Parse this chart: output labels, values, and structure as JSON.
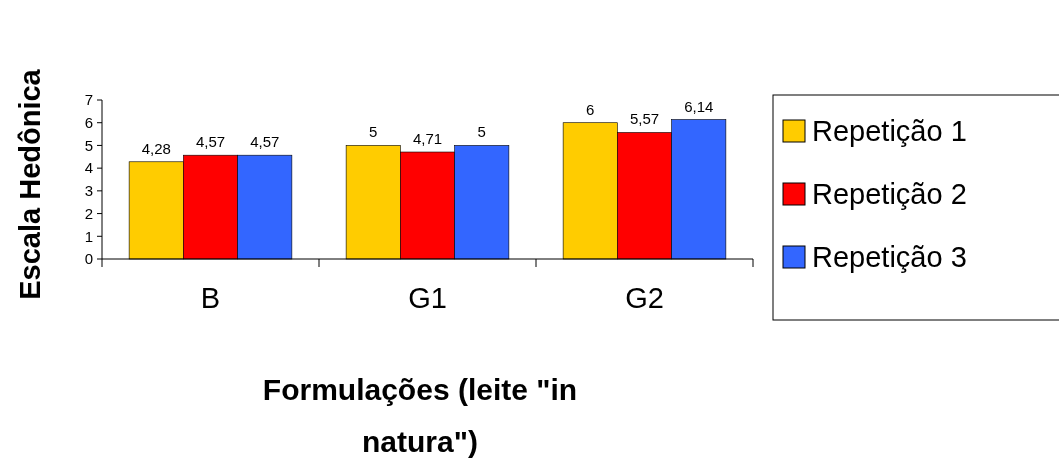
{
  "chart_data": {
    "type": "bar",
    "xlabel": "Formulações (leite \"in natura\")",
    "ylabel": "Escala Hedônica",
    "categories": [
      "B",
      "G1",
      "G2"
    ],
    "series": [
      {
        "name": "Repetição 1",
        "color": "#ffcc00",
        "values": [
          4.28,
          5,
          6
        ],
        "value_labels": [
          "4,28",
          "5",
          "6"
        ]
      },
      {
        "name": "Repetição 2",
        "color": "#ff0000",
        "values": [
          4.57,
          4.71,
          5.57
        ],
        "value_labels": [
          "4,57",
          "4,71",
          "5,57"
        ]
      },
      {
        "name": "Repetição 3",
        "color": "#3366ff",
        "values": [
          4.57,
          5,
          6.14
        ],
        "value_labels": [
          "4,57",
          "5",
          "6,14"
        ]
      }
    ],
    "ylim": [
      0,
      7
    ],
    "yticks": [
      0,
      1,
      2,
      3,
      4,
      5,
      6,
      7
    ],
    "legend": "right",
    "grid": false
  }
}
